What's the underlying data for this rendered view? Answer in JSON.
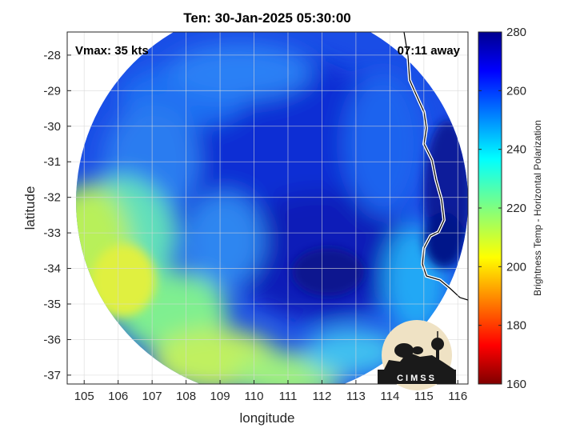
{
  "chart_data": {
    "type": "heatmap",
    "title": "Ten: 30-Jan-2025 05:30:00",
    "xlabel": "longitude",
    "ylabel": "latitude",
    "xlim": [
      104.5,
      116.3
    ],
    "ylim": [
      -37.25,
      -27.35
    ],
    "x_ticks": [
      105,
      106,
      107,
      108,
      109,
      110,
      111,
      112,
      113,
      114,
      115,
      116
    ],
    "y_ticks": [
      -28,
      -29,
      -30,
      -31,
      -32,
      -33,
      -34,
      -35,
      -36,
      -37
    ],
    "grid": true,
    "annotations": {
      "vmax": "Vmax: 35 kts",
      "away": "07:11 away"
    },
    "colorbar": {
      "label": "Brightness Temp - Horizontal Polarization",
      "min": 160,
      "max": 280,
      "ticks": [
        160,
        180,
        200,
        220,
        240,
        260,
        280
      ],
      "colormap": "jet"
    },
    "swath_center": {
      "lon": 110.6,
      "lat": -32.3
    },
    "field_regions": [
      {
        "name": "eye-cold-core",
        "lon": 111.5,
        "lat": -33.9,
        "value": 270
      },
      {
        "name": "northwest-band",
        "lon": 108.3,
        "lat": -29.5,
        "value": 255
      },
      {
        "name": "west-warm-band",
        "lon": 105.8,
        "lat": -33.8,
        "value": 212
      },
      {
        "name": "southwest-warm-band",
        "lon": 108.8,
        "lat": -36.2,
        "value": 218
      },
      {
        "name": "south-edge",
        "lon": 111.0,
        "lat": -36.8,
        "value": 225
      },
      {
        "name": "coast-land",
        "lon": 115.8,
        "lat": -31.5,
        "value": 275
      }
    ],
    "logo": "CIMSS"
  },
  "colors": {
    "background": "#ffffff",
    "grid": "#d9d9d9",
    "axis": "#262626",
    "coast": "#ffffff"
  }
}
